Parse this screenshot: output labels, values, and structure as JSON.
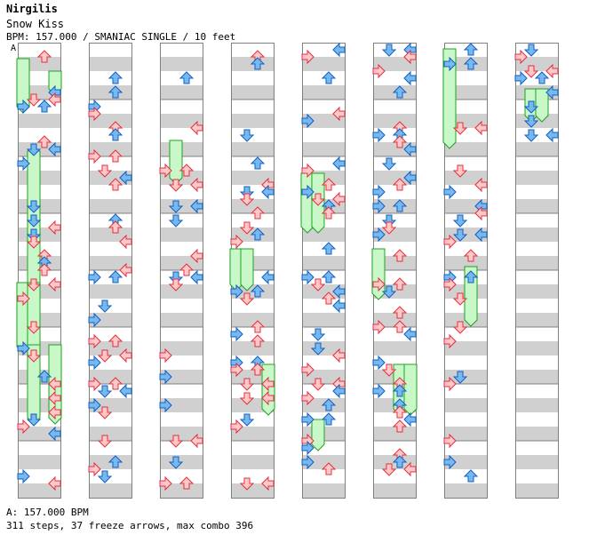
{
  "header": {
    "artist": "Nirgilis",
    "song_title": "Snow Kiss",
    "info_line": "BPM: 157.000 / SMANIAC SINGLE / 10 feet",
    "section_marker": "A"
  },
  "footer": {
    "bpm_label": "A: 157.000 BPM",
    "stats": "311 steps, 37 freeze arrows, max combo 396"
  },
  "chart_data": {
    "type": "step-chart",
    "columns": 8,
    "measures_per_column": 8,
    "lanes": [
      "left",
      "down",
      "up",
      "right"
    ],
    "total_steps": 311,
    "freeze_arrows": 37,
    "max_combo": 396
  },
  "colors": {
    "stripe": "#d0d0d0",
    "border": "#808080",
    "red_arrow_fill": "#ffc8c8",
    "red_arrow_stroke": "#e03040",
    "blue_arrow_fill": "#78b8f0",
    "blue_arrow_stroke": "#1060c0",
    "freeze_fill": "#c8f8c8",
    "freeze_stroke": "#20a020"
  }
}
